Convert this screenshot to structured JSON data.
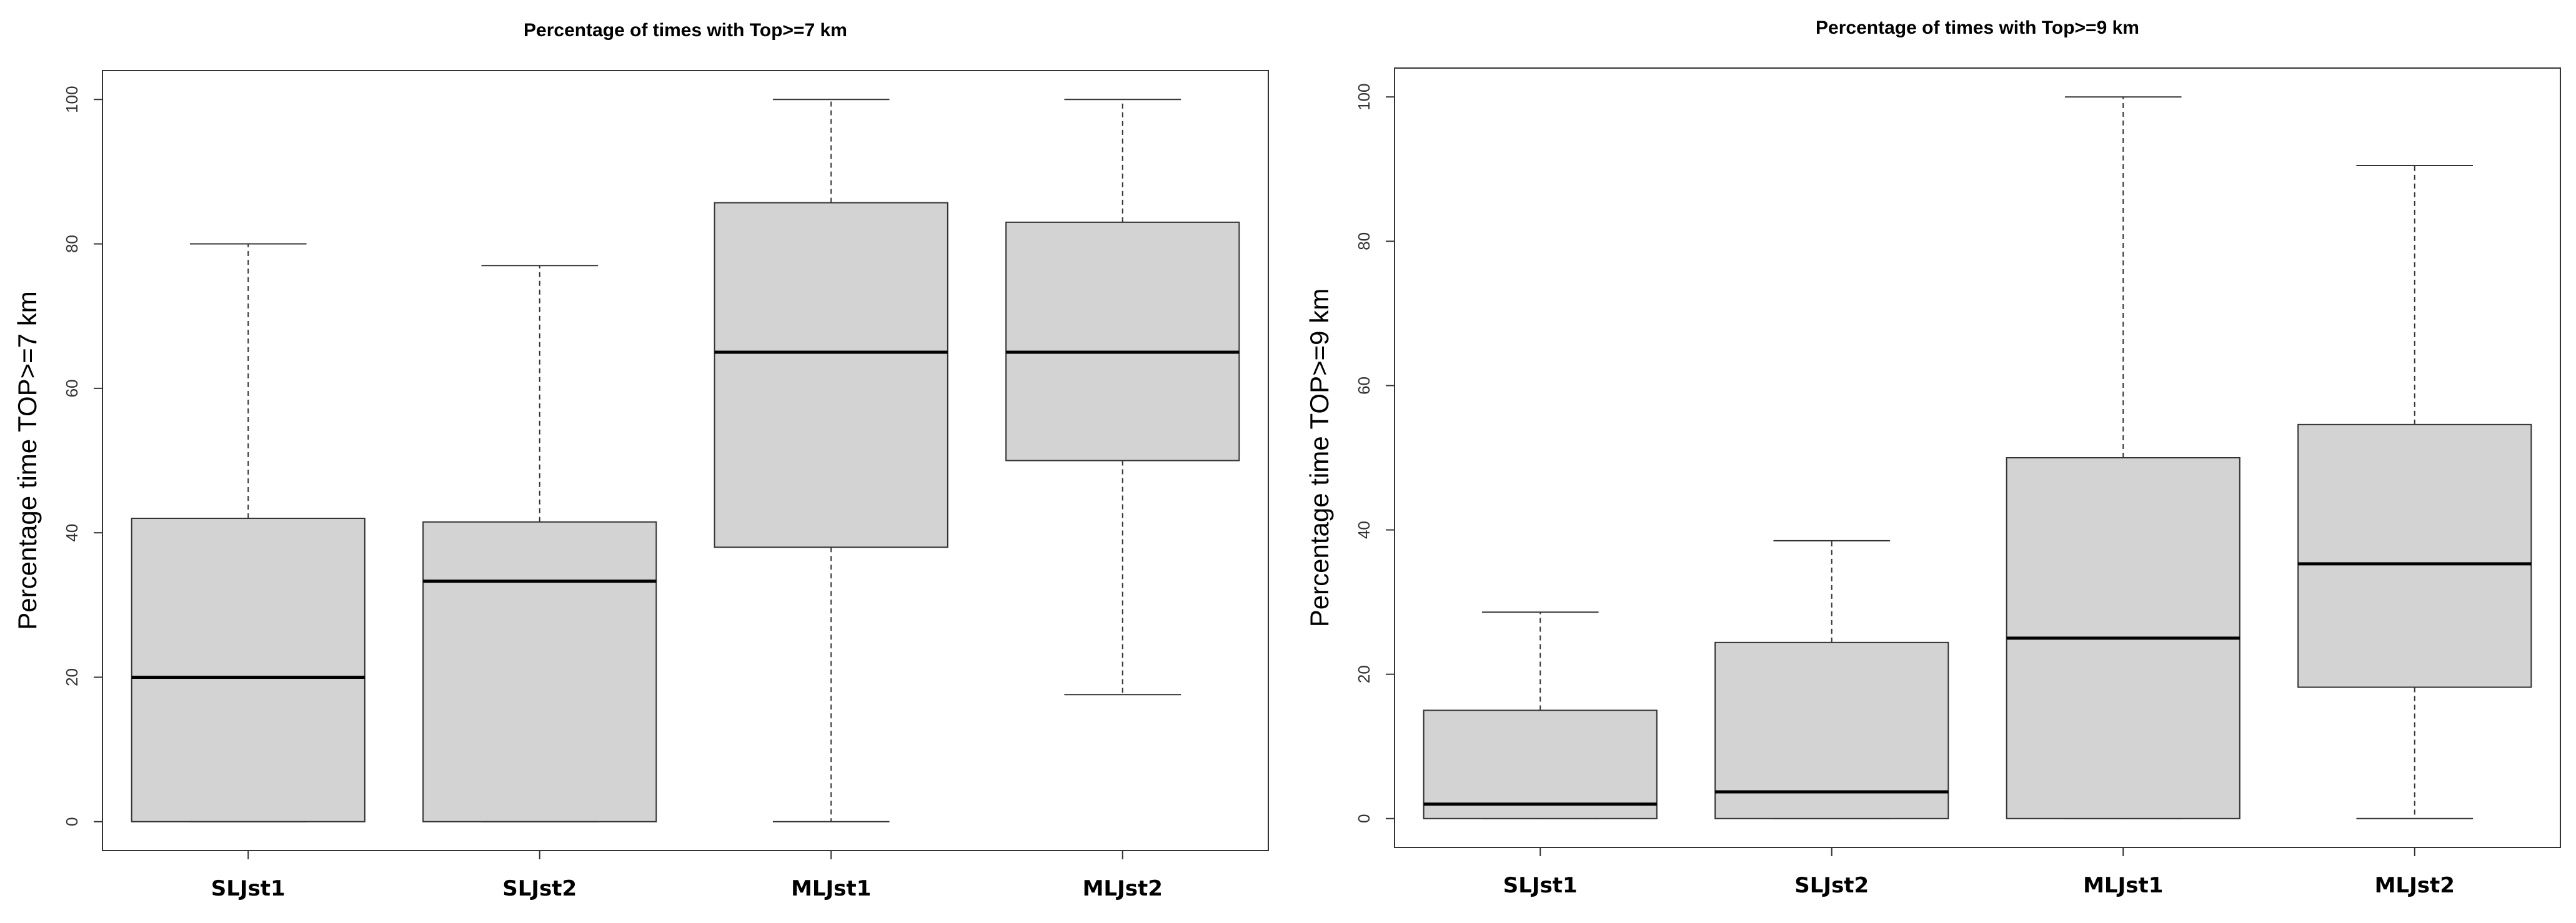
{
  "chart_data": [
    {
      "type": "boxplot",
      "title": "Percentage of times with Top>=7 km",
      "ylabel": "Percentage time TOP>=7 km",
      "xlabel": "",
      "ylim": [
        -4,
        104
      ],
      "yticks": [
        0,
        20,
        40,
        60,
        80,
        100
      ],
      "categories": [
        "SLJst1",
        "SLJst2",
        "MLJst1",
        "MLJst2"
      ],
      "boxes": [
        {
          "min": 0,
          "q1": 0,
          "median": 20,
          "q3": 42,
          "max": 80
        },
        {
          "min": 0,
          "q1": 0,
          "median": 33.3,
          "q3": 41.5,
          "max": 77
        },
        {
          "min": 0,
          "q1": 38,
          "median": 65,
          "q3": 85.7,
          "max": 100
        },
        {
          "min": 17.6,
          "q1": 50,
          "median": 65,
          "q3": 83,
          "max": 100
        }
      ],
      "grid": false
    },
    {
      "type": "boxplot",
      "title": "Percentage of times with Top>=9 km",
      "ylabel": "Percentage time TOP>=9 km",
      "xlabel": "",
      "ylim": [
        -4,
        104
      ],
      "yticks": [
        0,
        20,
        40,
        60,
        80,
        100
      ],
      "categories": [
        "SLJst1",
        "SLJst2",
        "MLJst1",
        "MLJst2"
      ],
      "boxes": [
        {
          "min": 0,
          "q1": 0,
          "median": 2,
          "q3": 15,
          "max": 28.6
        },
        {
          "min": 0,
          "q1": 0,
          "median": 3.7,
          "q3": 24.4,
          "max": 38.5
        },
        {
          "min": 0,
          "q1": 0,
          "median": 25,
          "q3": 50,
          "max": 100
        },
        {
          "min": 0,
          "q1": 18.2,
          "median": 35.3,
          "q3": 54.6,
          "max": 90.5
        }
      ],
      "grid": false
    }
  ]
}
